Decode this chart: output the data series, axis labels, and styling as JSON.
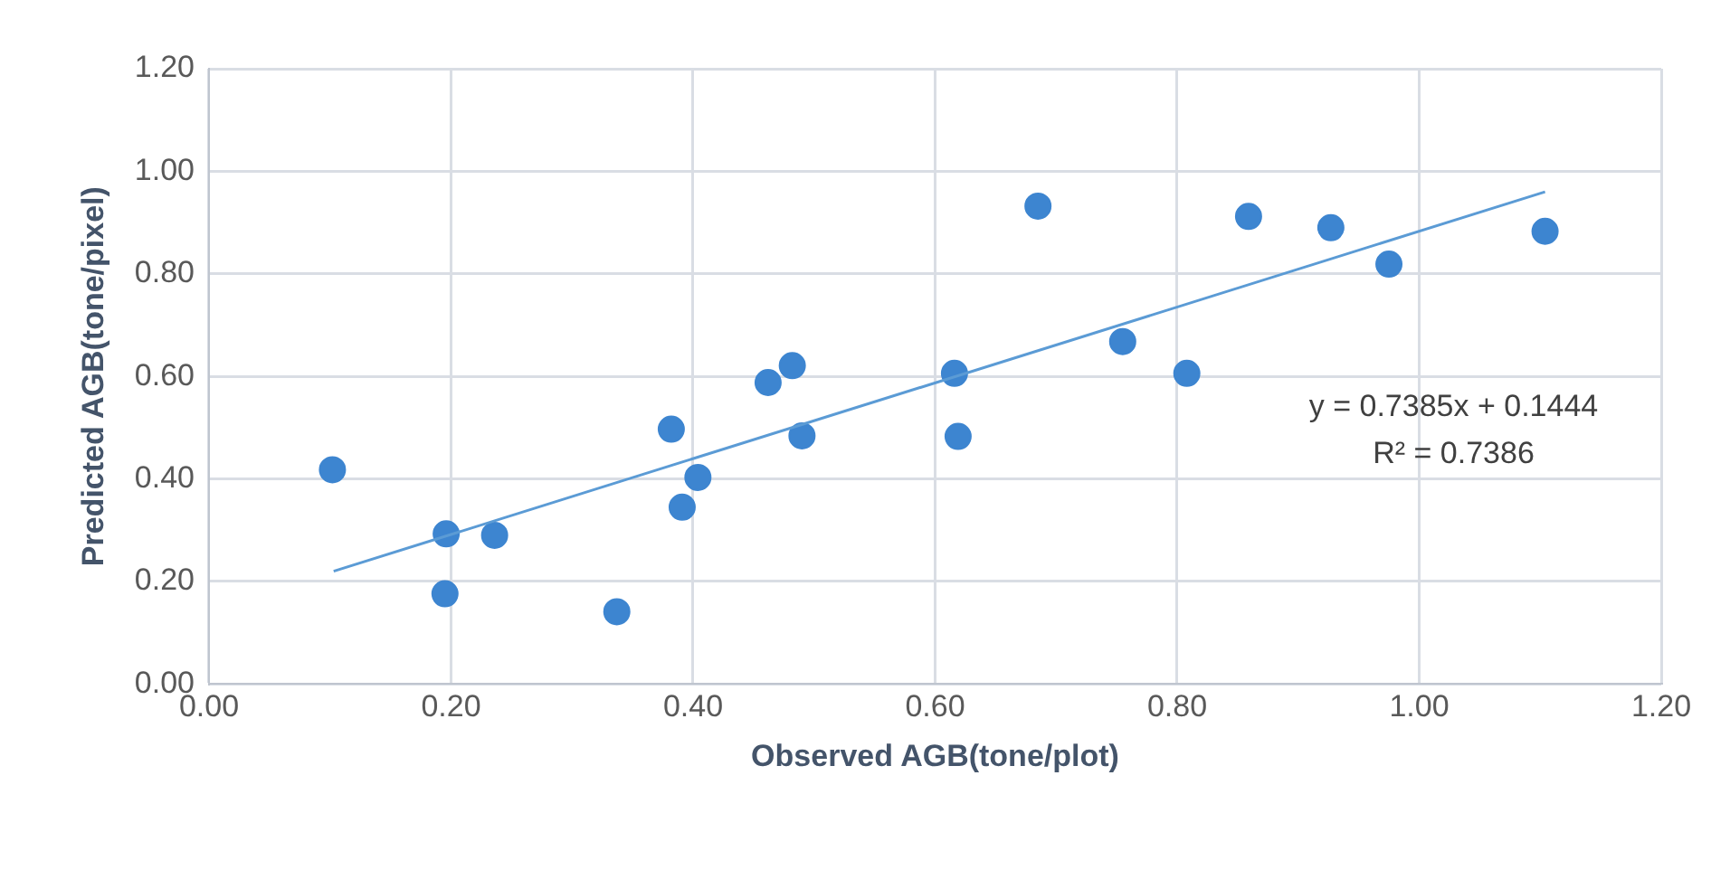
{
  "chart_data": {
    "type": "scatter",
    "xlabel": "Observed AGB(tone/plot)",
    "ylabel": "Predicted AGB(tone/pixel)",
    "xlim": [
      0,
      1.2
    ],
    "xticks": [
      {
        "value": 0,
        "label": "0.00"
      },
      {
        "value": 0.2,
        "label": "0.20"
      },
      {
        "value": 0.4,
        "label": "0.40"
      },
      {
        "value": 0.6,
        "label": "0.60"
      },
      {
        "value": 0.8,
        "label": "0.80"
      },
      {
        "value": 1,
        "label": "1.00"
      },
      {
        "value": 1.2,
        "label": "1.20"
      }
    ],
    "ylim": [
      0,
      1.2
    ],
    "yticks": [
      {
        "value": 0,
        "label": "0.00"
      },
      {
        "value": 0.2,
        "label": "0.20"
      },
      {
        "value": 0.4,
        "label": "0.40"
      },
      {
        "value": 0.6,
        "label": "0.60"
      },
      {
        "value": 0.8,
        "label": "0.80"
      },
      {
        "value": 1,
        "label": "1.00"
      },
      {
        "value": 1.2,
        "label": "1.20"
      }
    ],
    "grid": true,
    "legend": false,
    "series": [
      {
        "marker": "circle",
        "color": "#3d85d0",
        "x": [
          0.102,
          0.196,
          0.195,
          0.236,
          0.337,
          0.382,
          0.391,
          0.404,
          0.462,
          0.482,
          0.49,
          0.616,
          0.619,
          0.685,
          0.755,
          0.808,
          0.859,
          0.927,
          0.975,
          1.104
        ],
        "values": [
          0.418,
          0.293,
          0.176,
          0.29,
          0.141,
          0.497,
          0.345,
          0.403,
          0.588,
          0.621,
          0.484,
          0.606,
          0.483,
          0.932,
          0.668,
          0.606,
          0.912,
          0.89,
          0.819,
          0.883
        ]
      },
      {
        "type": "line",
        "color": "#5b9bd5",
        "x": [
          0.103,
          1.104
        ],
        "values": [
          0.22,
          0.96
        ]
      }
    ],
    "annotations": [
      "y = 0.7385x + 0.1444",
      "R² = 0.7386"
    ]
  }
}
